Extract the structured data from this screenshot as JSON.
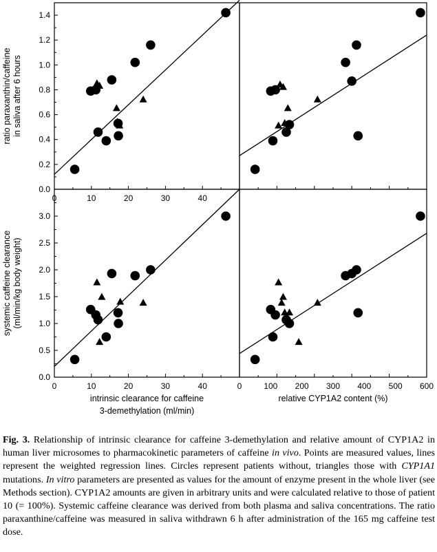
{
  "chart_data": [
    {
      "type": "scatter",
      "xlim": [
        0,
        50
      ],
      "ylim": [
        0.0,
        1.5
      ],
      "x_ticks": [
        "0",
        "10",
        "20",
        "30",
        "40"
      ],
      "y_ticks": [
        "0.0",
        "0.2",
        "0.4",
        "0.6",
        "0.8",
        "1.0",
        "1.2",
        "1.4"
      ],
      "ylabel_lines": [
        "ratio paraxanthin/caffeine",
        "in saliva after 6 hours"
      ],
      "series": [
        {
          "marker": "circle",
          "points": [
            [
              5.5,
              0.16
            ],
            [
              9.8,
              0.79
            ],
            [
              11.2,
              0.8
            ],
            [
              11.8,
              0.46
            ],
            [
              14.0,
              0.39
            ],
            [
              15.5,
              0.88
            ],
            [
              17.2,
              0.53
            ],
            [
              17.3,
              0.43
            ],
            [
              21.8,
              1.02
            ],
            [
              26.0,
              1.16
            ],
            [
              46.3,
              1.42
            ]
          ]
        },
        {
          "marker": "triangle",
          "points": [
            [
              11.5,
              0.85
            ],
            [
              12.2,
              0.83
            ],
            [
              16.8,
              0.65
            ],
            [
              17.0,
              0.54
            ],
            [
              17.6,
              0.51
            ],
            [
              24.0,
              0.72
            ]
          ]
        }
      ],
      "regression": {
        "x": [
          0,
          50
        ],
        "y": [
          0.12,
          1.52
        ]
      }
    },
    {
      "type": "scatter",
      "xlim": [
        0,
        600
      ],
      "ylim": [
        0.0,
        1.5
      ],
      "series": [
        {
          "marker": "circle",
          "points": [
            [
              50,
              0.16
            ],
            [
              100,
              0.79
            ],
            [
              107,
              0.39
            ],
            [
              115,
              0.8
            ],
            [
              150,
              0.46
            ],
            [
              160,
              0.52
            ],
            [
              340,
              1.02
            ],
            [
              360,
              0.87
            ],
            [
              375,
              1.16
            ],
            [
              380,
              0.43
            ],
            [
              580,
              1.42
            ]
          ]
        },
        {
          "marker": "triangle",
          "points": [
            [
              125,
              0.51
            ],
            [
              130,
              0.84
            ],
            [
              140,
              0.82
            ],
            [
              145,
              0.53
            ],
            [
              155,
              0.65
            ],
            [
              250,
              0.72
            ]
          ]
        }
      ],
      "regression": {
        "x": [
          0,
          600
        ],
        "y": [
          0.27,
          1.24
        ]
      }
    },
    {
      "type": "scatter",
      "xlim": [
        0,
        50
      ],
      "ylim": [
        0.0,
        3.5
      ],
      "x_ticks": [
        "0",
        "10",
        "20",
        "30",
        "40"
      ],
      "y_ticks": [
        "0.0",
        "0.5",
        "1.0",
        "1.5",
        "2.0",
        "2.5",
        "3.0"
      ],
      "ylabel_lines": [
        "systemic caffeine clearance",
        "(ml/min/kg body weight)"
      ],
      "xlabel_lines": [
        "intrinsic clearance for caffeine",
        "3-demethylation (ml/min)"
      ],
      "series": [
        {
          "marker": "circle",
          "points": [
            [
              5.5,
              0.33
            ],
            [
              9.8,
              1.26
            ],
            [
              11.2,
              1.16
            ],
            [
              11.8,
              1.07
            ],
            [
              14.0,
              0.75
            ],
            [
              15.5,
              1.93
            ],
            [
              17.2,
              1.2
            ],
            [
              17.3,
              1.0
            ],
            [
              21.8,
              1.89
            ],
            [
              26.0,
              2.0
            ],
            [
              46.3,
              3.0
            ]
          ]
        },
        {
          "marker": "triangle",
          "points": [
            [
              11.5,
              1.76
            ],
            [
              12.2,
              0.65
            ],
            [
              12.8,
              1.49
            ],
            [
              17.8,
              1.4
            ],
            [
              24.0,
              1.38
            ]
          ]
        }
      ],
      "regression": {
        "x": [
          0,
          50
        ],
        "y": [
          0.2,
          3.5
        ]
      }
    },
    {
      "type": "scatter",
      "xlim": [
        0,
        600
      ],
      "ylim": [
        0.0,
        3.5
      ],
      "x_ticks": [
        "0",
        "100",
        "200",
        "300",
        "400",
        "500",
        "600"
      ],
      "xlabel_lines": [
        "relative CYP1A2 content (%)"
      ],
      "series": [
        {
          "marker": "circle",
          "points": [
            [
              50,
              0.33
            ],
            [
              100,
              1.26
            ],
            [
              107,
              0.75
            ],
            [
              115,
              1.16
            ],
            [
              150,
              1.07
            ],
            [
              160,
              1.0
            ],
            [
              340,
              1.89
            ],
            [
              360,
              1.93
            ],
            [
              375,
              2.0
            ],
            [
              380,
              1.2
            ],
            [
              580,
              3.0
            ]
          ]
        },
        {
          "marker": "triangle",
          "points": [
            [
              125,
              1.76
            ],
            [
              135,
              1.38
            ],
            [
              140,
              1.49
            ],
            [
              145,
              1.2
            ],
            [
              160,
              1.2
            ],
            [
              190,
              0.65
            ],
            [
              250,
              1.38
            ]
          ]
        }
      ],
      "regression": {
        "x": [
          0,
          600
        ],
        "y": [
          0.44,
          2.68
        ]
      }
    }
  ],
  "caption": {
    "label": "Fig. 3.",
    "parts": [
      {
        "text": " Relationship of intrinsic clearance for caffeine 3-demethylation and relative amount of CYP1A2 in human liver microsomes to pharmacokinetic parameters of caffeine ",
        "italic": false
      },
      {
        "text": "in vivo",
        "italic": true
      },
      {
        "text": ". Points are measured values, lines represent the weighted regression lines. Circles represent patients without, triangles those with ",
        "italic": false
      },
      {
        "text": "CYP1A1",
        "italic": true
      },
      {
        "text": " mutations. ",
        "italic": false
      },
      {
        "text": "In vitro",
        "italic": true
      },
      {
        "text": " parameters are presented as values for the amount of enzyme present in the whole liver (see Methods section). CYP1A2 amounts are given in arbitrary units and were calculated relative to those of patient 10 (= 100%). Systemic caffeine clearance was derived from both plasma and saliva concentrations. The ratio paraxanthine/caffeine was measured in saliva withdrawn 6 h after administration of the 165 mg caffeine test dose.",
        "italic": false
      }
    ]
  }
}
